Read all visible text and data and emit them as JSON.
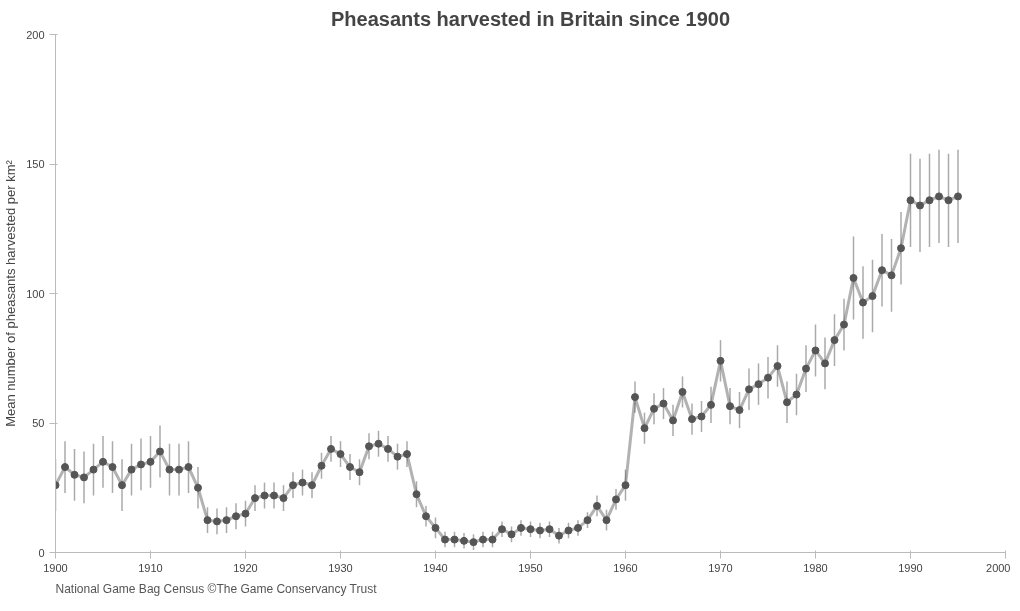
{
  "chart_data": {
    "type": "line",
    "title": "Pheasants harvested in Britain since 1900",
    "ylabel": "Mean number of pheasants harvested per km²",
    "annotations": [
      "National Game Bag Census  ©The Game Conservancy Trust"
    ],
    "x": [
      1900,
      1901,
      1902,
      1903,
      1904,
      1905,
      1906,
      1907,
      1908,
      1909,
      1910,
      1911,
      1912,
      1913,
      1914,
      1915,
      1916,
      1917,
      1918,
      1919,
      1920,
      1921,
      1922,
      1923,
      1924,
      1925,
      1926,
      1927,
      1928,
      1929,
      1930,
      1931,
      1932,
      1933,
      1934,
      1935,
      1936,
      1937,
      1938,
      1939,
      1940,
      1941,
      1942,
      1943,
      1944,
      1945,
      1946,
      1947,
      1948,
      1949,
      1950,
      1951,
      1952,
      1953,
      1954,
      1955,
      1956,
      1957,
      1958,
      1959,
      1960,
      1961,
      1962,
      1963,
      1964,
      1965,
      1966,
      1967,
      1968,
      1969,
      1970,
      1971,
      1972,
      1973,
      1974,
      1975,
      1976,
      1977,
      1978,
      1979,
      1980,
      1981,
      1982,
      1983,
      1984,
      1985,
      1986,
      1987,
      1988,
      1989,
      1990,
      1991,
      1992,
      1993,
      1994,
      1995
    ],
    "series": [
      {
        "color": "#555555",
        "values": [
          26,
          33,
          30,
          29,
          32,
          35,
          33,
          26,
          32,
          34,
          35,
          39,
          32,
          32,
          33,
          25,
          12.5,
          12,
          12.5,
          14,
          15,
          21,
          22,
          22,
          21,
          26,
          27,
          26,
          33.5,
          40,
          38,
          33,
          31,
          41,
          42,
          40,
          37,
          38,
          22.5,
          14,
          9.5,
          5,
          5,
          4.5,
          4,
          5,
          5,
          9,
          7,
          9.5,
          9,
          8.5,
          9,
          6.5,
          8.5,
          9.5,
          12.5,
          18,
          12.5,
          20.5,
          26,
          60,
          48,
          55.5,
          57.5,
          51,
          62,
          51.5,
          52.5,
          57,
          74,
          56.5,
          55,
          63,
          65,
          67.5,
          72,
          58,
          61,
          71,
          78,
          73,
          82,
          88,
          106,
          96.5,
          99,
          109,
          107,
          117.5,
          136,
          134,
          136,
          137.5,
          136,
          137.5
        ],
        "errors": [
          10,
          10,
          10,
          10,
          10,
          10,
          10,
          10,
          10,
          10,
          10,
          10,
          10,
          10,
          10,
          8,
          5,
          5,
          5,
          5,
          5,
          5,
          5,
          5,
          5,
          5,
          5,
          5,
          5,
          5,
          5,
          5,
          5,
          5,
          5,
          5,
          5,
          5,
          5,
          4,
          4,
          3,
          3,
          3,
          3,
          3,
          3,
          3,
          3,
          3,
          3,
          3,
          3,
          3,
          3,
          3,
          3,
          4,
          4,
          4,
          6,
          6,
          6,
          6,
          6,
          6,
          6,
          6,
          6,
          7,
          8,
          7,
          7,
          8,
          8,
          8,
          8,
          8,
          8,
          9,
          10,
          10,
          10,
          10,
          16,
          14,
          14,
          14,
          14,
          14,
          18,
          18,
          18,
          18,
          18,
          18
        ]
      }
    ],
    "xlim": [
      1900,
      2000
    ],
    "xticks": [
      1900,
      1910,
      1920,
      1930,
      1940,
      1950,
      1960,
      1970,
      1980,
      1990,
      2000
    ],
    "ylim": [
      0,
      200
    ],
    "yticks": [
      0,
      50,
      100,
      150,
      200
    ],
    "grid": false,
    "marker": "circle"
  }
}
